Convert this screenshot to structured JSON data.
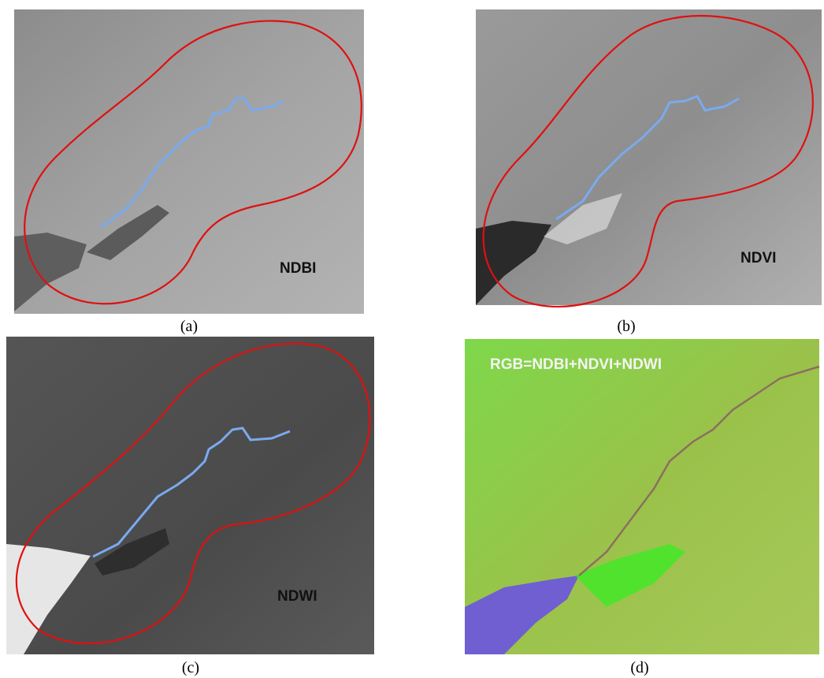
{
  "panels": [
    {
      "label": "NDBI",
      "caption": "(a)"
    },
    {
      "label": "NDVI",
      "caption": "(b)"
    },
    {
      "label": "NDWI",
      "caption": "(c)"
    },
    {
      "label": "RGB=NDBI+NDVI+NDWI",
      "caption": "(d)"
    }
  ]
}
